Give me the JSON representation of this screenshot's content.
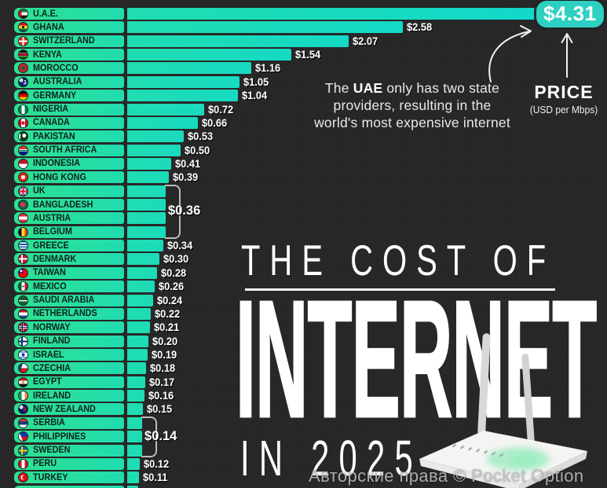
{
  "page": {
    "watermark": "Авторские права © Pocket Option"
  },
  "title": {
    "line1": "THE COST OF",
    "line2": "INTERNET",
    "line3": "IN 2025"
  },
  "badge": {
    "label": "$4.31"
  },
  "price_label": {
    "title": "PRICE",
    "subtitle": "(USD per Mbps)"
  },
  "annotation": {
    "lines": [
      "The UAE only has two state",
      "providers, resulting in the",
      "world's most expensive internet"
    ],
    "bold": "UAE"
  },
  "colors": {
    "background": "#262626",
    "bar_green": "#30e18c",
    "bar_teal": "#19dac1",
    "bar_cyan": "#0fd8ce",
    "badge_teal": "#2ed0c2",
    "bracket_grey": "#b9bdbd"
  },
  "chart_data": {
    "type": "bar",
    "title": "The Cost of Internet in 2025",
    "ylabel": "PRICE (USD per Mbps)",
    "xlim": [
      0,
      4.31
    ],
    "legend_position": "none",
    "grid": false,
    "rows": [
      {
        "country": "U.A.E.",
        "value": 4.31,
        "label": "$4.31",
        "flag": "uae",
        "badge": true
      },
      {
        "country": "GHANA",
        "value": 2.58,
        "label": "$2.58",
        "flag": "ghana"
      },
      {
        "country": "SWITZERLAND",
        "value": 2.07,
        "label": "$2.07",
        "flag": "switzerland"
      },
      {
        "country": "KENYA",
        "value": 1.54,
        "label": "$1.54",
        "flag": "kenya"
      },
      {
        "country": "MOROCCO",
        "value": 1.16,
        "label": "$1.16",
        "flag": "morocco"
      },
      {
        "country": "AUSTRALIA",
        "value": 1.05,
        "label": "$1.05",
        "flag": "australia"
      },
      {
        "country": "GERMANY",
        "value": 1.04,
        "label": "$1.04",
        "flag": "germany"
      },
      {
        "country": "NIGERIA",
        "value": 0.72,
        "label": "$0.72",
        "flag": "nigeria"
      },
      {
        "country": "CANADA",
        "value": 0.66,
        "label": "$0.66",
        "flag": "canada"
      },
      {
        "country": "PAKISTAN",
        "value": 0.53,
        "label": "$0.53",
        "flag": "pakistan"
      },
      {
        "country": "SOUTH AFRICA",
        "value": 0.5,
        "label": "$0.50",
        "flag": "south-africa"
      },
      {
        "country": "INDONESIA",
        "value": 0.41,
        "label": "$0.41",
        "flag": "indonesia"
      },
      {
        "country": "HONG KONG",
        "value": 0.39,
        "label": "$0.39",
        "flag": "hong-kong"
      },
      {
        "country": "UK",
        "value": 0.36,
        "label": "$0.36",
        "flag": "uk",
        "group": 0
      },
      {
        "country": "BANGLADESH",
        "value": 0.36,
        "label": "$0.36",
        "flag": "bangladesh",
        "group": 0
      },
      {
        "country": "AUSTRIA",
        "value": 0.36,
        "label": "$0.36",
        "flag": "austria",
        "group": 0
      },
      {
        "country": "BELGIUM",
        "value": 0.36,
        "label": "$0.36",
        "flag": "belgium",
        "group": 0
      },
      {
        "country": "GREECE",
        "value": 0.34,
        "label": "$0.34",
        "flag": "greece"
      },
      {
        "country": "DENMARK",
        "value": 0.3,
        "label": "$0.30",
        "flag": "denmark"
      },
      {
        "country": "TAIWAN",
        "value": 0.28,
        "label": "$0.28",
        "flag": "taiwan"
      },
      {
        "country": "MEXICO",
        "value": 0.26,
        "label": "$0.26",
        "flag": "mexico"
      },
      {
        "country": "SAUDI ARABIA",
        "value": 0.24,
        "label": "$0.24",
        "flag": "saudi-arabia"
      },
      {
        "country": "NETHERLANDS",
        "value": 0.22,
        "label": "$0.22",
        "flag": "netherlands"
      },
      {
        "country": "NORWAY",
        "value": 0.21,
        "label": "$0.21",
        "flag": "norway"
      },
      {
        "country": "FINLAND",
        "value": 0.2,
        "label": "$0.20",
        "flag": "finland"
      },
      {
        "country": "ISRAEL",
        "value": 0.19,
        "label": "$0.19",
        "flag": "israel"
      },
      {
        "country": "CZECHIA",
        "value": 0.18,
        "label": "$0.18",
        "flag": "czechia"
      },
      {
        "country": "EGYPT",
        "value": 0.17,
        "label": "$0.17",
        "flag": "egypt"
      },
      {
        "country": "IRELAND",
        "value": 0.16,
        "label": "$0.16",
        "flag": "ireland"
      },
      {
        "country": "NEW ZEALAND",
        "value": 0.15,
        "label": "$0.15",
        "flag": "new-zealand"
      },
      {
        "country": "SERBIA",
        "value": 0.14,
        "label": "$0.14",
        "flag": "serbia",
        "group": 1
      },
      {
        "country": "PHILIPPINES",
        "value": 0.14,
        "label": "$0.14",
        "flag": "philippines",
        "group": 1
      },
      {
        "country": "SWEDEN",
        "value": 0.14,
        "label": "$0.14",
        "flag": "sweden",
        "group": 1
      },
      {
        "country": "PERU",
        "value": 0.12,
        "label": "$0.12",
        "flag": "peru"
      },
      {
        "country": "TURKEY",
        "value": 0.11,
        "label": "$0.11",
        "flag": "turkey"
      },
      {
        "country": "",
        "value": 0.1,
        "label": "",
        "flag": "",
        "partial": true
      }
    ],
    "groups": [
      {
        "label": "$0.36",
        "from": 13,
        "to": 16
      },
      {
        "label": "$0.14",
        "from": 30,
        "to": 32
      }
    ]
  }
}
